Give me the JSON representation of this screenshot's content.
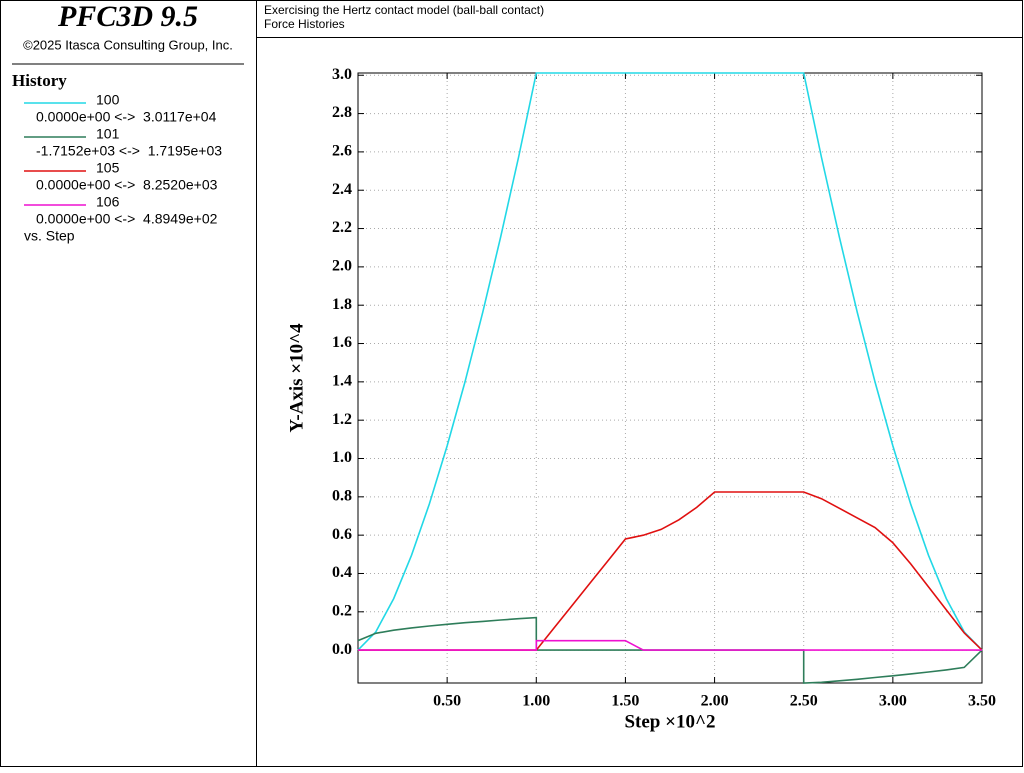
{
  "app_title": "PFC3D 9.5",
  "copyright": "©2025 Itasca Consulting Group, Inc.",
  "legend_title": "History",
  "legend_footer": "vs. Step",
  "header": [
    "Exercising the Hertz contact model (ball-ball contact)",
    "Force Histories"
  ],
  "chart_data": {
    "type": "line",
    "xlabel": "Step ×10^2",
    "ylabel": "Y-Axis ×10^4",
    "grid": true,
    "xlim": [
      0,
      3.5
    ],
    "ylim": [
      -0.1715,
      3.0117
    ],
    "xticks": [
      {
        "value": 0.5,
        "label": "0.50"
      },
      {
        "value": 1.0,
        "label": "1.00"
      },
      {
        "value": 1.5,
        "label": "1.50"
      },
      {
        "value": 2.0,
        "label": "2.00"
      },
      {
        "value": 2.5,
        "label": "2.50"
      },
      {
        "value": 3.0,
        "label": "3.00"
      },
      {
        "value": 3.5,
        "label": "3.50"
      }
    ],
    "yticks": [
      {
        "value": 0,
        "label": "0.0"
      },
      0.2,
      0.4,
      0.6,
      0.8,
      {
        "value": 1,
        "label": "1.0"
      },
      1.2,
      1.4,
      1.6,
      1.8,
      {
        "value": 2,
        "label": "2.0"
      },
      2.2,
      2.4,
      2.6,
      2.8,
      {
        "value": 3,
        "label": "3.0"
      }
    ],
    "x": [
      0,
      0.1,
      0.2,
      0.3,
      0.4,
      0.5,
      0.6,
      0.7,
      0.8,
      0.9,
      1.0,
      1.0,
      1.1,
      1.2,
      1.3,
      1.4,
      1.5,
      1.6,
      1.7,
      1.8,
      1.9,
      2.0,
      2.1,
      2.2,
      2.3,
      2.4,
      2.5,
      2.5,
      2.6,
      2.7,
      2.8,
      2.9,
      3.0,
      3.1,
      3.2,
      3.3,
      3.4,
      3.5
    ],
    "series": [
      {
        "name": "100",
        "range": "0.0000e+00 <->  3.0117e+04",
        "color": "#22d8e6",
        "values": [
          0,
          0.095,
          0.269,
          0.495,
          0.762,
          1.065,
          1.4,
          1.764,
          2.155,
          2.571,
          3.0117,
          3.0117,
          3.0117,
          3.0117,
          3.0117,
          3.0117,
          3.0117,
          3.0117,
          3.0117,
          3.0117,
          3.0117,
          3.0117,
          3.0117,
          3.0117,
          3.0117,
          3.0117,
          3.0117,
          3.0117,
          2.571,
          2.155,
          1.764,
          1.4,
          1.065,
          0.762,
          0.495,
          0.269,
          0.095,
          0
        ]
      },
      {
        "name": "101",
        "range": "-1.7152e+03 <->  1.7195e+03",
        "color": "#2e7d5a",
        "values": [
          0.05,
          0.088,
          0.104,
          0.116,
          0.126,
          0.135,
          0.143,
          0.15,
          0.157,
          0.164,
          0.17,
          0,
          0,
          0,
          0,
          0,
          0,
          0,
          0,
          0,
          0,
          0,
          0,
          0,
          0,
          0,
          0,
          -0.1715,
          -0.168,
          -0.16,
          -0.152,
          -0.143,
          -0.134,
          -0.124,
          -0.114,
          -0.103,
          -0.09,
          0
        ]
      },
      {
        "name": "105",
        "range": "0.0000e+00 <->  8.2520e+03",
        "color": "#e01010",
        "values": [
          0,
          0,
          0,
          0,
          0,
          0,
          0,
          0,
          0,
          0,
          0,
          0,
          0.116,
          0.232,
          0.348,
          0.464,
          0.58,
          0.6,
          0.63,
          0.68,
          0.745,
          0.825,
          0.825,
          0.825,
          0.825,
          0.825,
          0.825,
          0.825,
          0.79,
          0.74,
          0.69,
          0.64,
          0.56,
          0.45,
          0.33,
          0.21,
          0.09,
          0
        ]
      },
      {
        "name": "106",
        "range": "0.0000e+00 <->  4.8949e+02",
        "color": "#ee10d0",
        "values": [
          0,
          0,
          0,
          0,
          0,
          0,
          0,
          0,
          0,
          0,
          0,
          0.049,
          0.049,
          0.049,
          0.049,
          0.049,
          0.049,
          0,
          0,
          0,
          0,
          0,
          0,
          0,
          0,
          0,
          0,
          0,
          0,
          0,
          0,
          0,
          0,
          0,
          0,
          0,
          0,
          0
        ]
      }
    ]
  }
}
